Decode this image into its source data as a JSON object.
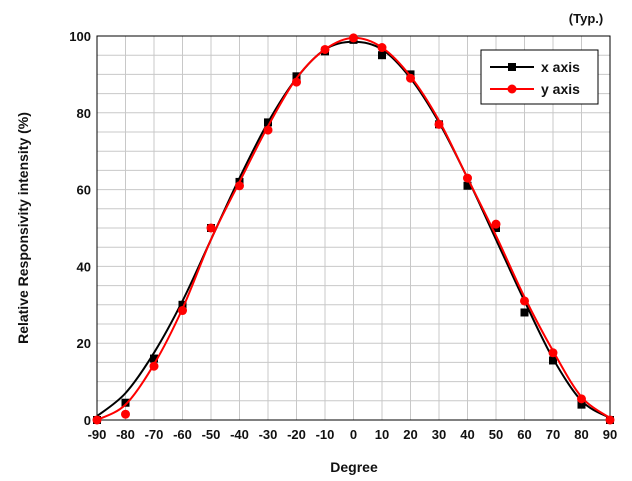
{
  "chart_data": {
    "type": "line",
    "note": "(Typ.)",
    "xlabel": "Degree",
    "ylabel": "Relative Responsivity intensity (%)",
    "xlim": [
      -90,
      90
    ],
    "ylim": [
      0,
      100
    ],
    "xticks": [
      -90,
      -80,
      -70,
      -60,
      -50,
      -40,
      -30,
      -20,
      -10,
      0,
      10,
      20,
      30,
      40,
      50,
      60,
      70,
      80,
      90
    ],
    "yticks": [
      0,
      20,
      40,
      60,
      80,
      100
    ],
    "grid": true,
    "legend_position": "top-right",
    "series": [
      {
        "name": "x axis",
        "color": "#000000",
        "marker": "square",
        "x": [
          -90,
          -80,
          -70,
          -60,
          -50,
          -40,
          -30,
          -20,
          -10,
          0,
          10,
          20,
          30,
          40,
          50,
          60,
          70,
          80,
          90
        ],
        "y": [
          0,
          4.5,
          16,
          30,
          50,
          62,
          77.5,
          89.5,
          96,
          99,
          95,
          90,
          77,
          61,
          50,
          28,
          15.5,
          4,
          0
        ],
        "curve_x": [
          -90,
          -80,
          -70,
          -60,
          -50,
          -40,
          -30,
          -20,
          -10,
          0,
          10,
          20,
          30,
          40,
          50,
          60,
          70,
          80,
          90
        ],
        "curve_y": [
          1,
          7,
          17.5,
          31,
          47,
          63,
          77.5,
          89,
          96.5,
          98.5,
          96.5,
          89,
          77.5,
          63,
          47,
          31,
          16,
          5,
          0.5
        ]
      },
      {
        "name": "y axis",
        "color": "#ff0000",
        "marker": "circle",
        "x": [
          -90,
          -80,
          -70,
          -60,
          -50,
          -40,
          -30,
          -20,
          -10,
          0,
          10,
          20,
          30,
          40,
          50,
          60,
          70,
          80,
          90
        ],
        "y": [
          0,
          1.5,
          14,
          28.5,
          50,
          61,
          75.5,
          88,
          96.5,
          99.5,
          97,
          89,
          77,
          63,
          51,
          31,
          17.5,
          5.5,
          0
        ],
        "curve_x": [
          -90,
          -80,
          -70,
          -60,
          -50,
          -40,
          -30,
          -20,
          -10,
          0,
          10,
          20,
          30,
          40,
          50,
          60,
          70,
          80,
          90
        ],
        "curve_y": [
          0,
          4,
          14.5,
          29,
          47,
          62,
          76.5,
          89,
          96.5,
          99.5,
          97,
          89.5,
          78,
          63,
          48,
          32,
          18,
          6,
          0.5
        ]
      }
    ]
  }
}
